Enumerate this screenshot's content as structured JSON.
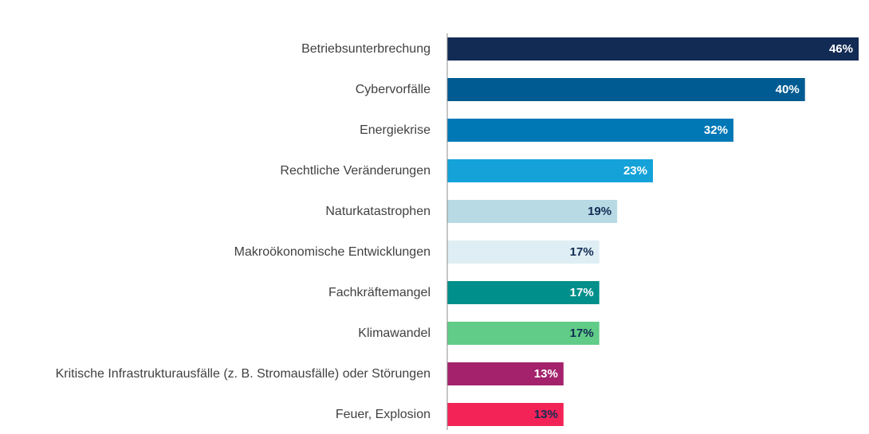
{
  "chart_data": {
    "type": "bar",
    "orientation": "horizontal",
    "categories": [
      "Betriebsunterbrechung",
      "Cybervorfälle",
      "Energiekrise",
      "Rechtliche Veränderungen",
      "Naturkatastrophen",
      "Makroökonomische Entwicklungen",
      "Fachkräftemangel",
      "Klimawandel",
      "Kritische Infrastrukturausfälle (z. B. Stromausfälle) oder Störungen",
      "Feuer, Explosion"
    ],
    "values": [
      46,
      40,
      32,
      23,
      19,
      17,
      17,
      17,
      13,
      13
    ],
    "value_labels": [
      "46%",
      "40%",
      "32%",
      "23%",
      "19%",
      "17%",
      "17%",
      "17%",
      "13%",
      "13%"
    ],
    "bar_colors": [
      "#122b54",
      "#005b92",
      "#0078b6",
      "#14a2d8",
      "#b7dae5",
      "#dfeef4",
      "#008f8a",
      "#60cc87",
      "#a4226c",
      "#f42357"
    ],
    "label_colors": [
      "#ffffff",
      "#ffffff",
      "#ffffff",
      "#ffffff",
      "#122b54",
      "#122b54",
      "#ffffff",
      "#122b54",
      "#ffffff",
      "#122b54"
    ],
    "title": "",
    "xlabel": "",
    "ylabel": "",
    "xlim": [
      0,
      46
    ],
    "grid": false,
    "legend": "none"
  }
}
